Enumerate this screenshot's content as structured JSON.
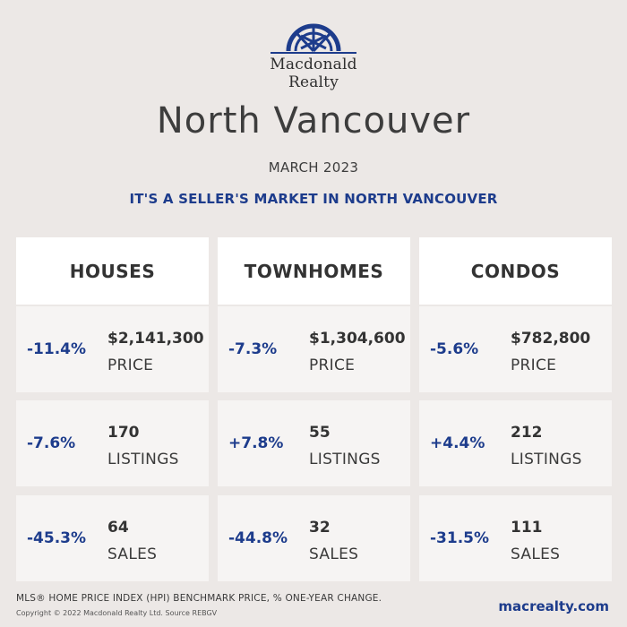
{
  "brand": {
    "name_line1": "Macdonald",
    "name_line2": "Realty",
    "logo_color": "#1d3c8c"
  },
  "header": {
    "city": "North Vancouver",
    "month": "MARCH 2023",
    "market": "IT'S A SELLER'S MARKET IN NORTH VANCOUVER"
  },
  "columns": [
    {
      "title": "HOUSES",
      "price": {
        "pct": "-11.4%",
        "value": "$2,141,300",
        "label": "PRICE"
      },
      "listings": {
        "pct": "-7.6%",
        "value": "170",
        "label": "LISTINGS"
      },
      "sales": {
        "pct": "-45.3%",
        "value": "64",
        "label": "SALES"
      }
    },
    {
      "title": "TOWNHOMES",
      "price": {
        "pct": "-7.3%",
        "value": "$1,304,600",
        "label": "PRICE"
      },
      "listings": {
        "pct": "+7.8%",
        "value": "55",
        "label": "LISTINGS"
      },
      "sales": {
        "pct": "-44.8%",
        "value": "32",
        "label": "SALES"
      }
    },
    {
      "title": "CONDOS",
      "price": {
        "pct": "-5.6%",
        "value": "$782,800",
        "label": "PRICE"
      },
      "listings": {
        "pct": "+4.4%",
        "value": "212",
        "label": "LISTINGS"
      },
      "sales": {
        "pct": "-31.5%",
        "value": "111",
        "label": "SALES"
      }
    }
  ],
  "footer": {
    "note": "MLS® HOME PRICE INDEX (HPI) BENCHMARK PRICE, % ONE-YEAR CHANGE.",
    "copyright": "Copyright © 2022 Macdonald Realty Ltd. Source REBGV",
    "website": "macrealty.com"
  },
  "colors": {
    "accent": "#1d3c8c",
    "background": "#ece8e6",
    "card": "#f6f4f3",
    "header_card": "#ffffff"
  }
}
